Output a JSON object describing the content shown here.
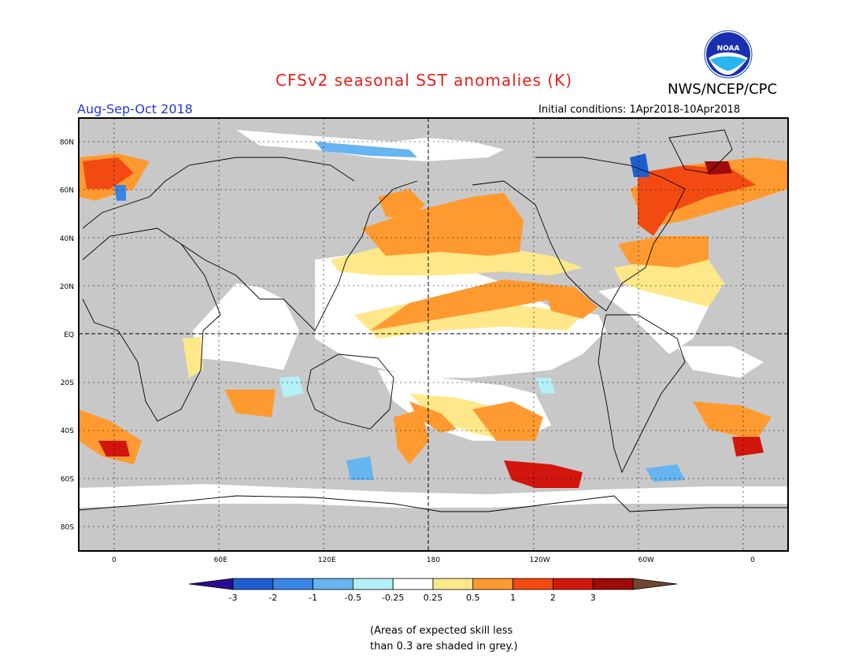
{
  "header": {
    "title": "CFSv2 seasonal SST anomalies (K)",
    "agency": "NWS/NCEP/CPC",
    "season": "Aug-Sep-Oct 2018",
    "initial_conditions": "Initial conditions: 1Apr2018-10Apr2018",
    "logo_text": "NOAA"
  },
  "map": {
    "lat_labels": [
      "80N",
      "60N",
      "40N",
      "20N",
      "EQ",
      "20S",
      "40S",
      "60S",
      "80S"
    ],
    "lat_values": [
      80,
      60,
      40,
      20,
      0,
      -20,
      -40,
      -60,
      -80
    ],
    "lon_labels": [
      "0",
      "60E",
      "120E",
      "180",
      "120W",
      "60W",
      "0"
    ],
    "lon_values": [
      0,
      60,
      120,
      180,
      240,
      300,
      360
    ],
    "lon_range": [
      -20,
      380
    ],
    "lat_range": [
      -90,
      90
    ],
    "grey_meaning": "low skill",
    "colors": {
      "grey": "#c8c8c8",
      "ocean_neutral": "#ffffff",
      "coast": "#000000"
    }
  },
  "colorbar": {
    "labels": [
      "-3",
      "-2",
      "-1",
      "-0.5",
      "-0.25",
      "0.25",
      "0.5",
      "1",
      "2",
      "3"
    ],
    "colors": [
      "#2b0b93",
      "#1e5fd0",
      "#3a84e6",
      "#66b4f0",
      "#b4f0f8",
      "#ffffff",
      "#ffe88a",
      "#ff9a30",
      "#f24a12",
      "#d1160e",
      "#a00a0a",
      "#6e4632"
    ]
  },
  "footnote": {
    "line1": "(Areas of expected skill less",
    "line2": "than 0.3 are shaded in grey.)"
  }
}
